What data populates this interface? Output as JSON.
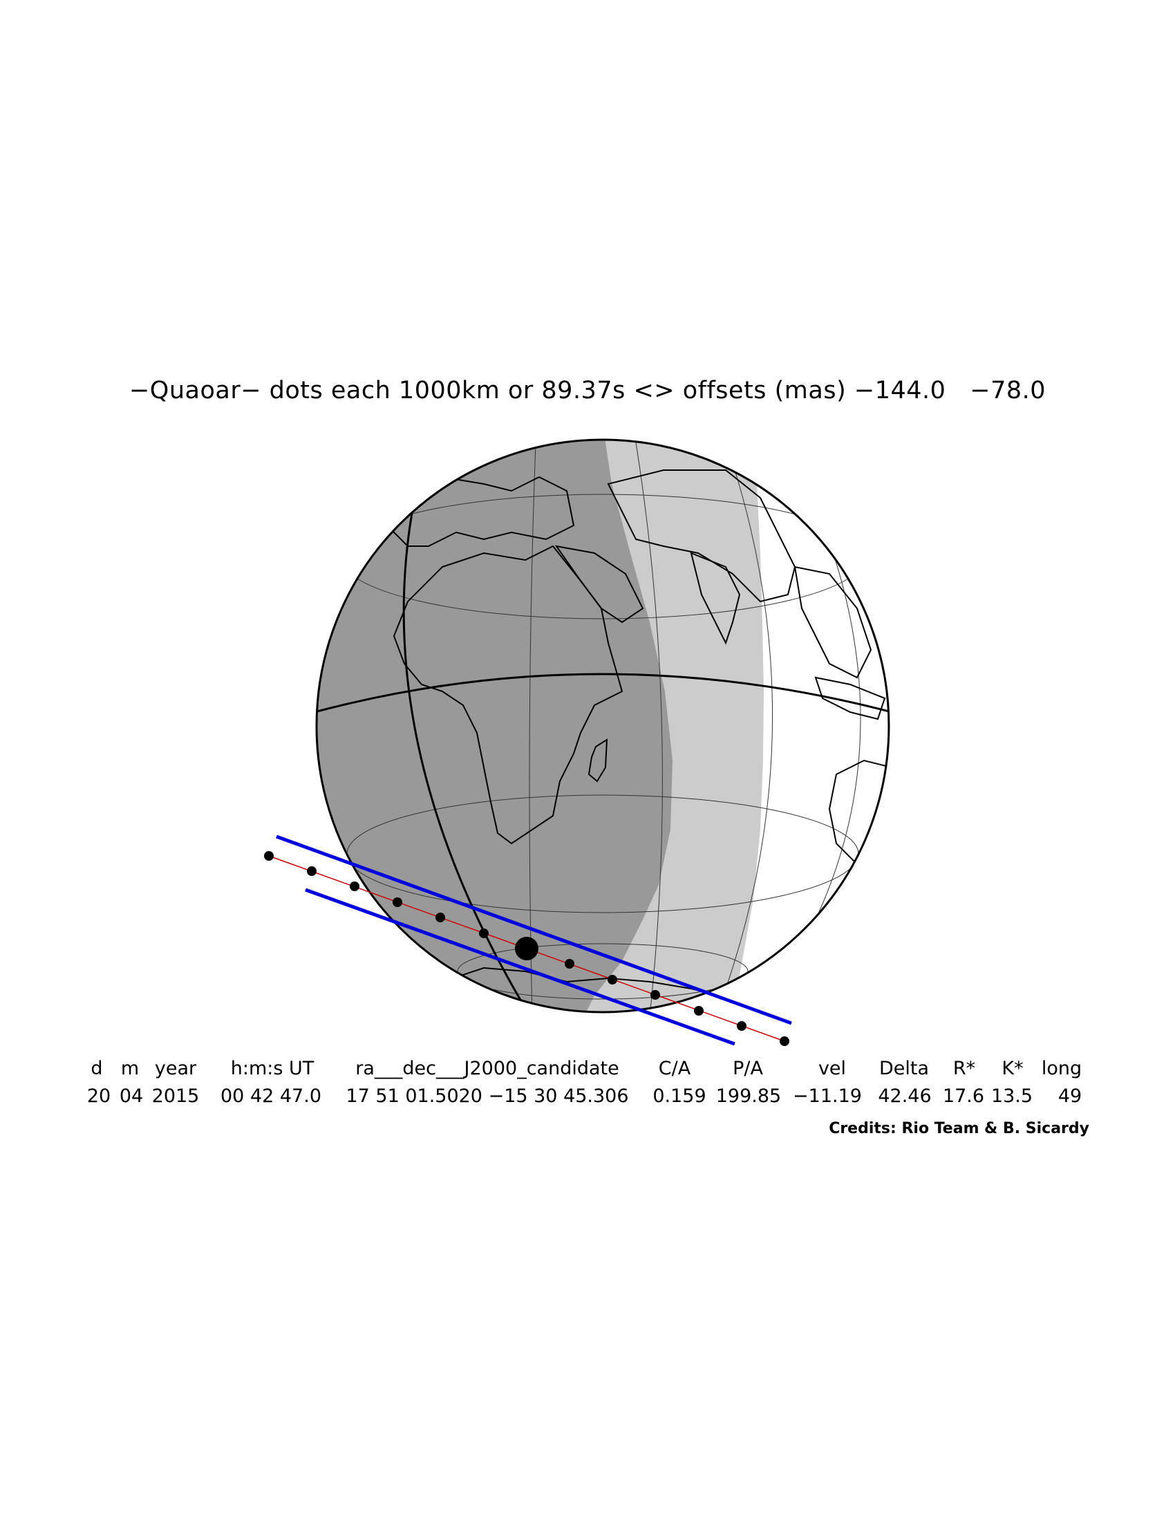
{
  "title": "−Quaoar− dots each 1000km or 89.37s <> offsets (mas) −144.0   −78.0",
  "globe": {
    "view": "Africa, Indian Ocean and Antarctica as seen from space",
    "night_shade_color": "#999999",
    "twilight_shade_color": "#cccccc",
    "day_color": "#ffffff",
    "path_edge_color": "#0000dd",
    "centerline_color": "#cc0000",
    "dot_color": "#000000"
  },
  "table": {
    "headers": [
      "d",
      "m",
      "year",
      "h:m:s UT",
      "ra___dec___J2000_candidate",
      "C/A",
      "P/A",
      "vel",
      "Delta",
      "R*",
      "K*",
      "long"
    ],
    "values": [
      "20",
      "04",
      "2015",
      "00 42 47.0",
      "17 51 01.5020 −15 30 45.306",
      "0.159",
      "199.85",
      "−11.19",
      "42.46",
      "17.6",
      "13.5",
      "49"
    ]
  },
  "credits": "Credits: Rio Team & B. Sicardy"
}
